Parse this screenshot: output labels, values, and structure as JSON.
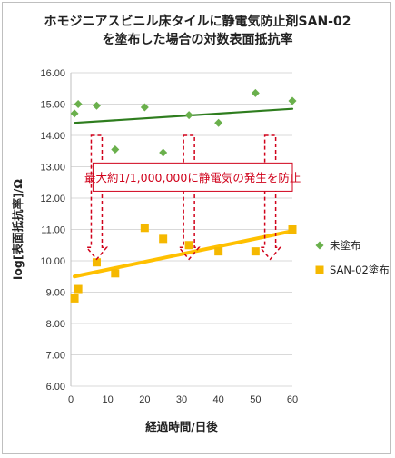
{
  "chart_data": {
    "type": "scatter",
    "title_lines": [
      "ホモジニアスビニル床タイルに静電気防止剤SAN-02",
      "を塗布した場合の対数表面抵抗率"
    ],
    "xlabel": "経過時間/日後",
    "ylabel": "log[表面抵抗率]/Ω",
    "xlim": [
      0,
      60
    ],
    "ylim": [
      6.0,
      16.0
    ],
    "x_ticks": [
      "0",
      "10",
      "20",
      "30",
      "40",
      "50",
      "60"
    ],
    "y_ticks": [
      "6.00",
      "7.00",
      "8.00",
      "9.00",
      "10.00",
      "11.00",
      "12.00",
      "13.00",
      "14.00",
      "15.00",
      "16.00"
    ],
    "grid": "horizontal",
    "legend_position": "right",
    "series": [
      {
        "name": "未塗布",
        "marker": "diamond",
        "color": "#6ab04c",
        "points": [
          [
            1,
            14.7
          ],
          [
            2,
            15.0
          ],
          [
            7,
            14.95
          ],
          [
            12,
            13.55
          ],
          [
            20,
            14.9
          ],
          [
            25,
            13.45
          ],
          [
            32,
            14.65
          ],
          [
            40,
            14.4
          ],
          [
            50,
            15.35
          ],
          [
            60,
            15.1
          ]
        ],
        "trendline": {
          "color": "#2e7d1e",
          "from": [
            1,
            14.4
          ],
          "to": [
            60,
            14.85
          ]
        }
      },
      {
        "name": "SAN-02塗布",
        "marker": "square",
        "color": "#f5b800",
        "points": [
          [
            1,
            8.8
          ],
          [
            2,
            9.1
          ],
          [
            7,
            9.95
          ],
          [
            12,
            9.6
          ],
          [
            20,
            11.05
          ],
          [
            25,
            10.7
          ],
          [
            32,
            10.5
          ],
          [
            40,
            10.3
          ],
          [
            50,
            10.3
          ],
          [
            60,
            11.0
          ]
        ],
        "trendline": {
          "color": "#ffc000",
          "from": [
            1,
            9.5
          ],
          "to": [
            60,
            10.95
          ]
        }
      }
    ],
    "annotation": {
      "text": "最大約1/1,000,000に静電気の発生を防止",
      "color": "#d0021b",
      "arrows": [
        {
          "x": 7,
          "from": 14.0,
          "to": 10.05
        },
        {
          "x": 32,
          "from": 14.0,
          "to": 10.05
        },
        {
          "x": 54,
          "from": 14.0,
          "to": 10.05
        }
      ]
    }
  }
}
